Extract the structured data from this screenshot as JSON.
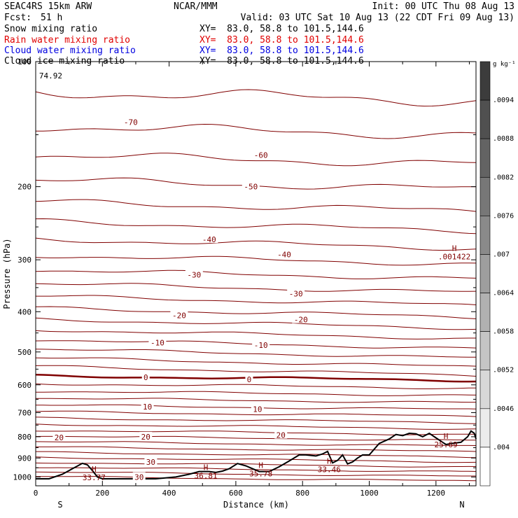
{
  "header": {
    "model": "SEAC4RS 15km ARW",
    "center": "NCAR/MMM",
    "init": "Init: 00 UTC Thu 08 Aug 13",
    "fcst_label": "Fcst:",
    "fcst_value": "51 h",
    "valid": "Valid: 03 UTC Sat 10 Aug 13 (22 CDT Fri 09 Aug 13)"
  },
  "fields": [
    {
      "name": "Snow mixing ratio",
      "xy": "XY=  83.0, 58.8 to 101.5,144.6",
      "color": "#000000"
    },
    {
      "name": "Rain water mixing ratio",
      "xy": "XY=  83.0, 58.8 to 101.5,144.6",
      "color": "#e00000"
    },
    {
      "name": "Cloud water mixing ratio",
      "xy": "XY=  83.0, 58.8 to 101.5,144.6",
      "color": "#0000e0"
    },
    {
      "name": "Cloud ice mixing ratio",
      "xy": "XY=  83.0, 58.8 to 101.5,144.6",
      "color": "#000000"
    }
  ],
  "chart_data": {
    "type": "line",
    "xlabel": "Distance (km)",
    "ylabel": "Pressure (hPa)",
    "x_range": [
      0,
      1320
    ],
    "y_range": [
      1050,
      100
    ],
    "y_scale": "log",
    "x_ticks": [
      0,
      200,
      400,
      600,
      800,
      1000,
      1200
    ],
    "y_ticks": [
      100,
      200,
      300,
      400,
      500,
      600,
      700,
      800,
      900,
      1000
    ],
    "x_end_labels": {
      "left": "S",
      "right": "N"
    },
    "contour_color": "#800000",
    "contour_labels": [
      {
        "text": "-70",
        "x": 285,
        "p": 140
      },
      {
        "text": "-60",
        "x": 675,
        "p": 168
      },
      {
        "text": "-50",
        "x": 645,
        "p": 200
      },
      {
        "text": "-40",
        "x": 520,
        "p": 268
      },
      {
        "text": "-40",
        "x": 745,
        "p": 291
      },
      {
        "text": "-30",
        "x": 475,
        "p": 326
      },
      {
        "text": "-30",
        "x": 780,
        "p": 362
      },
      {
        "text": "-20",
        "x": 430,
        "p": 408
      },
      {
        "text": "-20",
        "x": 795,
        "p": 418
      },
      {
        "text": "-10",
        "x": 365,
        "p": 475
      },
      {
        "text": "-10",
        "x": 675,
        "p": 481
      },
      {
        "text": "0",
        "x": 330,
        "p": 575
      },
      {
        "text": "0",
        "x": 640,
        "p": 582
      },
      {
        "text": "10",
        "x": 335,
        "p": 677
      },
      {
        "text": "10",
        "x": 665,
        "p": 686
      },
      {
        "text": "20",
        "x": 70,
        "p": 804
      },
      {
        "text": "20",
        "x": 330,
        "p": 800
      },
      {
        "text": "20",
        "x": 735,
        "p": 793
      },
      {
        "text": "30",
        "x": 345,
        "p": 920
      },
      {
        "text": "30",
        "x": 310,
        "p": 1000
      }
    ],
    "extrema": [
      {
        "label": "H",
        "value": "33.77",
        "x": 175,
        "p": 987
      },
      {
        "label": "H",
        "value": "36.81",
        "x": 510,
        "p": 978
      },
      {
        "label": "H",
        "value": "35.78",
        "x": 675,
        "p": 966
      },
      {
        "label": "H",
        "value": "33.46",
        "x": 880,
        "p": 944
      },
      {
        "label": "H",
        "value": "25.69",
        "x": 1230,
        "p": 822
      },
      {
        "label": "H",
        "value": ".001422",
        "x": 1255,
        "p": 290
      },
      {
        "label": "",
        "value": "74.92",
        "x": 45,
        "p": 108
      }
    ],
    "terrain": {
      "x": [
        0,
        40,
        80,
        110,
        140,
        155,
        170,
        185,
        200,
        260,
        360,
        420,
        460,
        490,
        520,
        540,
        560,
        580,
        605,
        630,
        650,
        670,
        700,
        730,
        760,
        790,
        810,
        840,
        860,
        875,
        890,
        905,
        920,
        935,
        950,
        965,
        980,
        1000,
        1030,
        1060,
        1080,
        1100,
        1120,
        1140,
        1160,
        1180,
        1200,
        1215,
        1230,
        1250,
        1275,
        1295,
        1305,
        1315,
        1320
      ],
      "p": [
        1010,
        1010,
        985,
        955,
        927,
        935,
        965,
        1000,
        1010,
        1010,
        1010,
        1000,
        985,
        970,
        970,
        975,
        968,
        955,
        928,
        940,
        955,
        970,
        970,
        945,
        915,
        885,
        885,
        890,
        880,
        868,
        925,
        912,
        885,
        930,
        920,
        900,
        885,
        885,
        830,
        810,
        790,
        795,
        785,
        787,
        800,
        785,
        805,
        820,
        835,
        830,
        825,
        800,
        775,
        785,
        810
      ]
    },
    "colorbar": {
      "unit": "g kg⁻¹",
      "labels": [
        ".0094",
        ".0088",
        ".0082",
        ".0076",
        ".007",
        ".0064",
        ".0058",
        ".0052",
        ".0046",
        ".004"
      ]
    }
  }
}
